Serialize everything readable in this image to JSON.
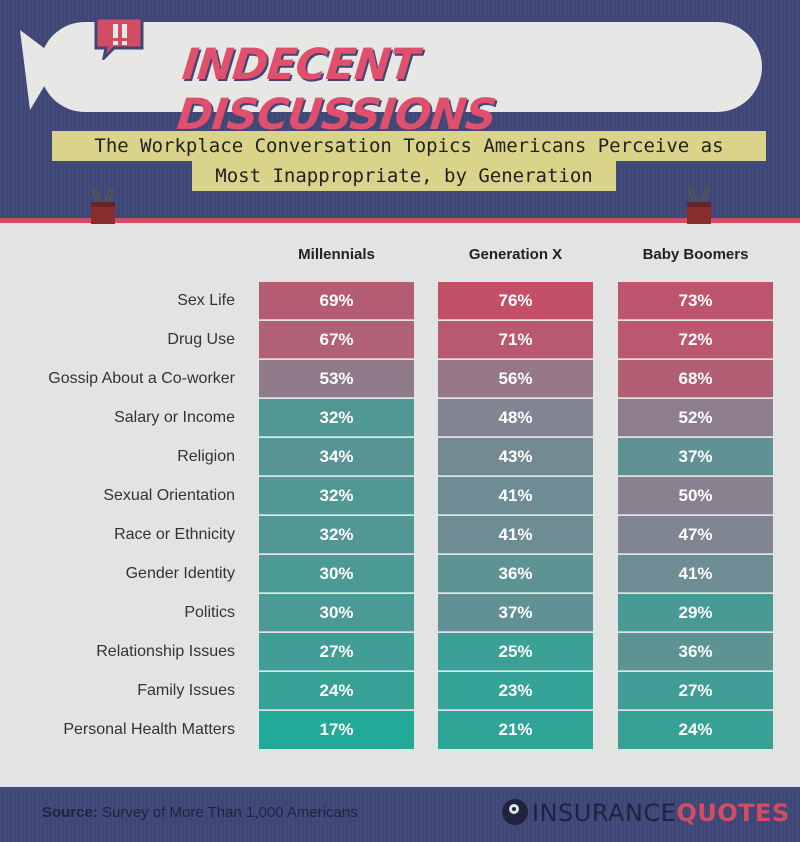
{
  "header": {
    "title": "INDECENT DISCUSSIONS",
    "subtitle_line1": "The Workplace Conversation Topics Americans Perceive as",
    "subtitle_line2": "Most Inappropriate, by Generation"
  },
  "footer": {
    "source_label": "Source:",
    "source_text": " Survey of More Than 1,000 Americans",
    "logo_part1": "INSURANCE",
    "logo_part2": "QUOTES"
  },
  "colors": {
    "background": "#3f4777",
    "panel": "#e2e4e3",
    "accent_red": "#d24d63",
    "subtitle_box": "#d9d489",
    "high_value": "#c45067",
    "mid_value": "#888291",
    "low_value": "#22aa98"
  },
  "chart_data": {
    "type": "table",
    "columns": [
      "Millennials",
      "Generation X",
      "Baby Boomers"
    ],
    "rows": [
      {
        "topic": "Sex Life",
        "values": [
          69,
          76,
          73
        ]
      },
      {
        "topic": "Drug Use",
        "values": [
          67,
          71,
          72
        ]
      },
      {
        "topic": "Gossip About a Co-worker",
        "values": [
          53,
          56,
          68
        ]
      },
      {
        "topic": "Salary or Income",
        "values": [
          32,
          48,
          52
        ]
      },
      {
        "topic": "Religion",
        "values": [
          34,
          43,
          37
        ]
      },
      {
        "topic": "Sexual Orientation",
        "values": [
          32,
          41,
          50
        ]
      },
      {
        "topic": "Race or Ethnicity",
        "values": [
          32,
          41,
          47
        ]
      },
      {
        "topic": "Gender Identity",
        "values": [
          30,
          36,
          41
        ]
      },
      {
        "topic": "Politics",
        "values": [
          30,
          37,
          29
        ]
      },
      {
        "topic": "Relationship Issues",
        "values": [
          27,
          25,
          36
        ]
      },
      {
        "topic": "Family Issues",
        "values": [
          24,
          23,
          27
        ]
      },
      {
        "topic": "Personal Health Matters",
        "values": [
          17,
          21,
          24
        ]
      }
    ],
    "value_suffix": "%"
  }
}
